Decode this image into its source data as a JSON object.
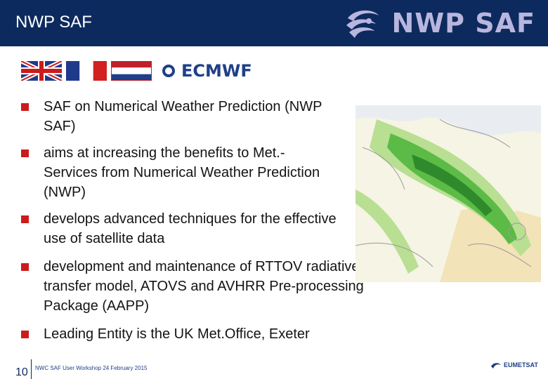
{
  "header": {
    "title": "NWP SAF",
    "brand": "NWP SAF"
  },
  "logos": {
    "ecmwf": "ECMWF",
    "eumetsat": "EUMETSAT"
  },
  "bullets": [
    "SAF on Numerical Weather Prediction (NWP SAF)",
    "aims at increasing the benefits to Met.-Services from Numerical Weather Prediction (NWP)",
    "develops advanced techniques for the effective use of satellite data",
    "development and maintenance of RTTOV radiative transfer model, ATOVS and AVHRR Pre-processing Package (AAPP)",
    "Leading Entity is the UK Met.Office, Exeter"
  ],
  "footer": {
    "slide_number": "10",
    "text": "NWC SAF User Workshop 24 February 2015"
  },
  "colors": {
    "header_bg": "#0d2a5e",
    "bullet": "#cc1b1b",
    "brand": "#b9b6de"
  }
}
